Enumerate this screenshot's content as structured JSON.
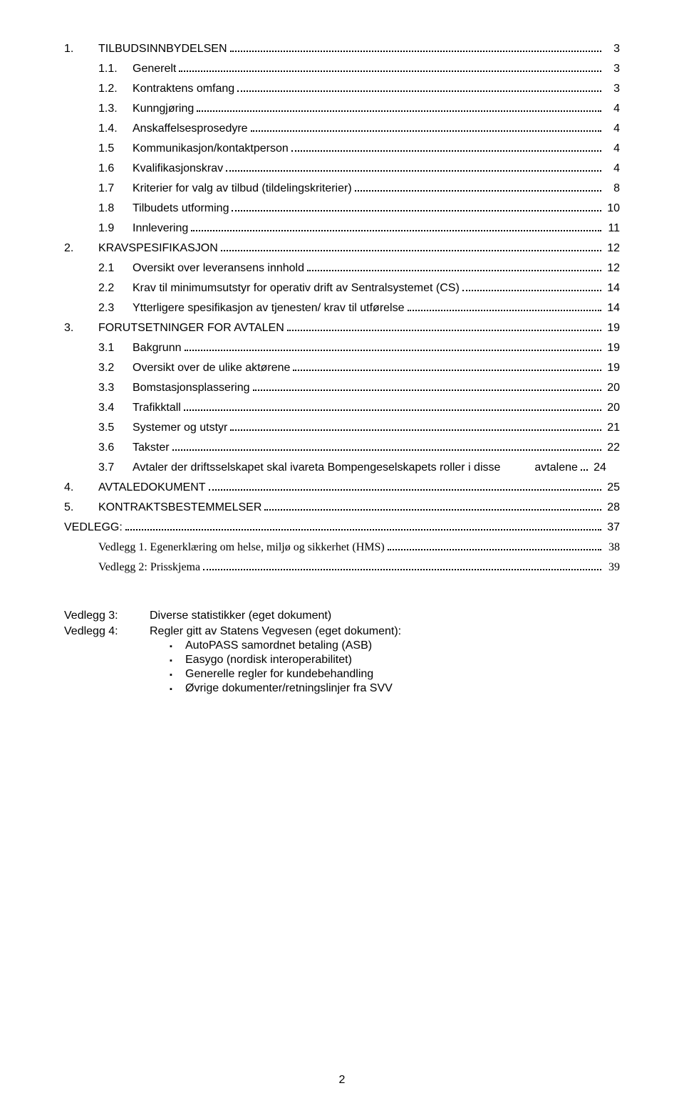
{
  "toc": [
    {
      "level": 0,
      "num": "1.",
      "text": "TILBUDSINNBYDELSEN",
      "page": "3"
    },
    {
      "level": 1,
      "num": "1.1.",
      "text": "Generelt",
      "page": "3"
    },
    {
      "level": 1,
      "num": "1.2.",
      "text": "Kontraktens omfang",
      "page": "3"
    },
    {
      "level": 1,
      "num": "1.3.",
      "text": "Kunngjøring",
      "page": "4"
    },
    {
      "level": 1,
      "num": "1.4.",
      "text": "Anskaffelsesprosedyre",
      "page": "4"
    },
    {
      "level": 1,
      "num": "1.5",
      "text": "Kommunikasjon/kontaktperson",
      "page": "4"
    },
    {
      "level": 1,
      "num": "1.6",
      "text": "Kvalifikasjonskrav",
      "page": "4"
    },
    {
      "level": 1,
      "num": "1.7",
      "text": "Kriterier for valg av tilbud (tildelingskriterier)",
      "page": "8"
    },
    {
      "level": 1,
      "num": "1.8",
      "text": "Tilbudets utforming",
      "page": "10"
    },
    {
      "level": 1,
      "num": "1.9",
      "text": "Innlevering",
      "page": "11"
    },
    {
      "level": 0,
      "num": "2.",
      "text": "KRAVSPESIFIKASJON",
      "page": "12"
    },
    {
      "level": 1,
      "num": "2.1",
      "text": "Oversikt over leveransens innhold",
      "page": "12"
    },
    {
      "level": 1,
      "num": "2.2",
      "text": "Krav til minimumsutstyr for operativ drift av Sentralsystemet (CS)",
      "page": "14"
    },
    {
      "level": 1,
      "num": "2.3",
      "text": "Ytterligere spesifikasjon av tjenesten/ krav til utførelse",
      "page": "14"
    },
    {
      "level": 0,
      "num": "3.",
      "text": "FORUTSETNINGER FOR AVTALEN",
      "page": "19"
    },
    {
      "level": 1,
      "num": "3.1",
      "text": "Bakgrunn",
      "page": "19"
    },
    {
      "level": 1,
      "num": "3.2",
      "text": "Oversikt over de ulike aktørene",
      "page": "19"
    },
    {
      "level": 1,
      "num": "3.3",
      "text": "Bomstasjonsplassering",
      "page": "20"
    },
    {
      "level": 1,
      "num": "3.4",
      "text": "Trafikktall",
      "page": "20"
    },
    {
      "level": 1,
      "num": "3.5",
      "text": "Systemer og utstyr",
      "page": "21"
    },
    {
      "level": 1,
      "num": "3.6",
      "text": "Takster",
      "page": "22"
    },
    {
      "level": 1,
      "num": "3.7",
      "text_line1": "Avtaler der driftsselskapet skal ivareta Bompengeselskapets roller i disse",
      "text_line2": "avtalene",
      "page": "24",
      "multiline": true
    },
    {
      "level": 0,
      "num": "4.",
      "text": "AVTALEDOKUMENT",
      "page": "25"
    },
    {
      "level": 0,
      "num": "5.",
      "text": "KONTRAKTSBESTEMMELSER",
      "page": "28"
    },
    {
      "level": 0,
      "num": "",
      "text": "VEDLEGG:",
      "page": "37",
      "nonum": true
    },
    {
      "level": "1-serif",
      "num": "",
      "text": "Vedlegg 1. Egenerklæring om helse, miljø og sikkerhet (HMS)",
      "page": "38",
      "nonum": true
    },
    {
      "level": "1-serif",
      "num": "",
      "text": "Vedlegg 2: Prisskjema",
      "page": "39",
      "nonum": true
    }
  ],
  "vedlegg": [
    {
      "label": "Vedlegg 3:",
      "body": "Diverse statistikker (eget dokument)"
    },
    {
      "label": "Vedlegg 4:",
      "body": "Regler gitt av Statens Vegvesen (eget dokument):",
      "items": [
        "AutoPASS samordnet betaling (ASB)",
        "Easygo (nordisk interoperabilitet)",
        "Generelle regler for kundebehandling",
        "Øvrige dokumenter/retningslinjer fra SVV"
      ]
    }
  ],
  "page_number": "2"
}
